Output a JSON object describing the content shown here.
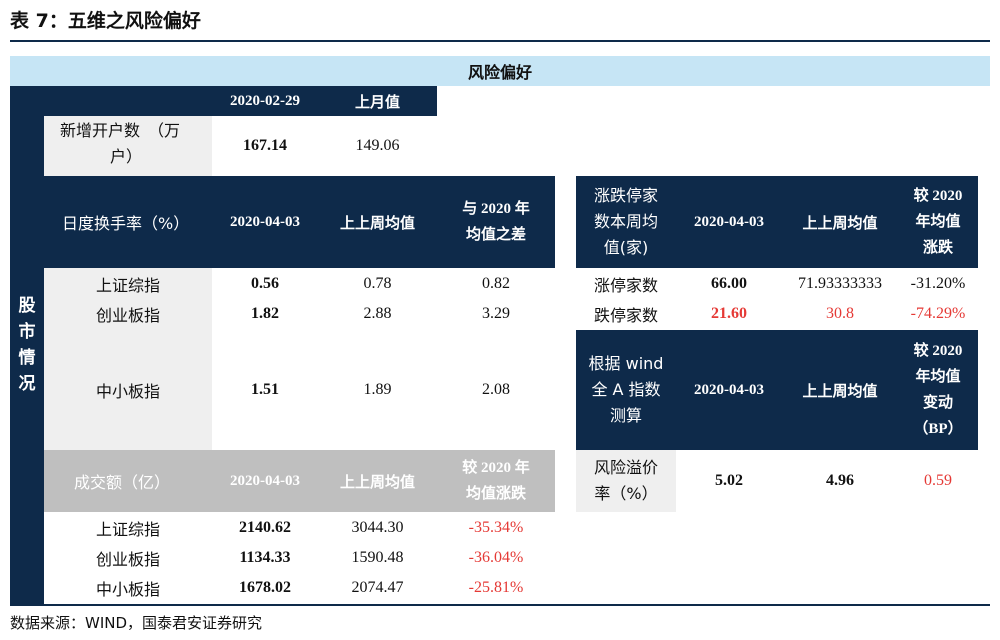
{
  "page": {
    "title": "表 7：五维之风险偏好",
    "banner": "风险偏好",
    "side_label": [
      "股",
      "市",
      "情",
      "况"
    ],
    "source": "数据来源：WIND，国泰君安证券研究"
  },
  "accounts": {
    "header": [
      "",
      "2020-02-29",
      "上月值"
    ],
    "row_label": [
      "新增开户数　（万",
      "户）"
    ],
    "value": "167.14",
    "prev": "149.06"
  },
  "turnover": {
    "label": "日度换手率（%）",
    "date": "2020-04-03",
    "prev_col": "上上周均值",
    "diff_col": [
      "与 2020 年",
      "均值之差"
    ],
    "rows": [
      {
        "name": "上证综指",
        "value": "0.56",
        "prev": "0.78",
        "diff": "0.82"
      },
      {
        "name": "创业板指",
        "value": "1.82",
        "prev": "2.88",
        "diff": "3.29"
      },
      {
        "name": "中小板指",
        "value": "1.51",
        "prev": "1.89",
        "diff": "2.08"
      }
    ]
  },
  "volume": {
    "label": "成交额（亿）",
    "date": "2020-04-03",
    "prev_col": "上上周均值",
    "chg_col": [
      "较 2020 年",
      "均值涨跌"
    ],
    "rows": [
      {
        "name": "上证综指",
        "value": "2140.62",
        "prev": "3044.30",
        "chg": "-35.34%"
      },
      {
        "name": "创业板指",
        "value": "1134.33",
        "prev": "1590.48",
        "chg": "-36.04%"
      },
      {
        "name": "中小板指",
        "value": "1678.02",
        "prev": "2074.47",
        "chg": "-25.81%"
      }
    ]
  },
  "limits": {
    "label": [
      "涨跌停家",
      "数本周均",
      "值(家)"
    ],
    "date": "2020-04-03",
    "prev_col": "上上周均值",
    "chg_col": [
      "较 2020",
      "年均值",
      "涨跌"
    ],
    "rows": [
      {
        "name": "涨停家数",
        "value": "66.00",
        "prev": "71.93333333",
        "chg": "-31.20%"
      },
      {
        "name": "跌停家数",
        "value": "21.60",
        "prev": "30.8",
        "chg": "-74.29%"
      }
    ]
  },
  "premium": {
    "label": [
      "根据 wind",
      "全 A 指数",
      "测算"
    ],
    "date": "2020-04-03",
    "prev_col": "上上周均值",
    "chg_col": [
      "较 2020",
      "年均值",
      "变动",
      "（BP）"
    ],
    "row_name": [
      "风险溢价",
      "率（%）"
    ],
    "value": "5.02",
    "prev": "4.96",
    "chg": "0.59"
  },
  "colors": {
    "navy": "#0e2a4a",
    "banner": "#c6e5f5",
    "grey_header": "#bfbfbf",
    "grey_cell": "#efefef",
    "negative": "#e53935"
  }
}
